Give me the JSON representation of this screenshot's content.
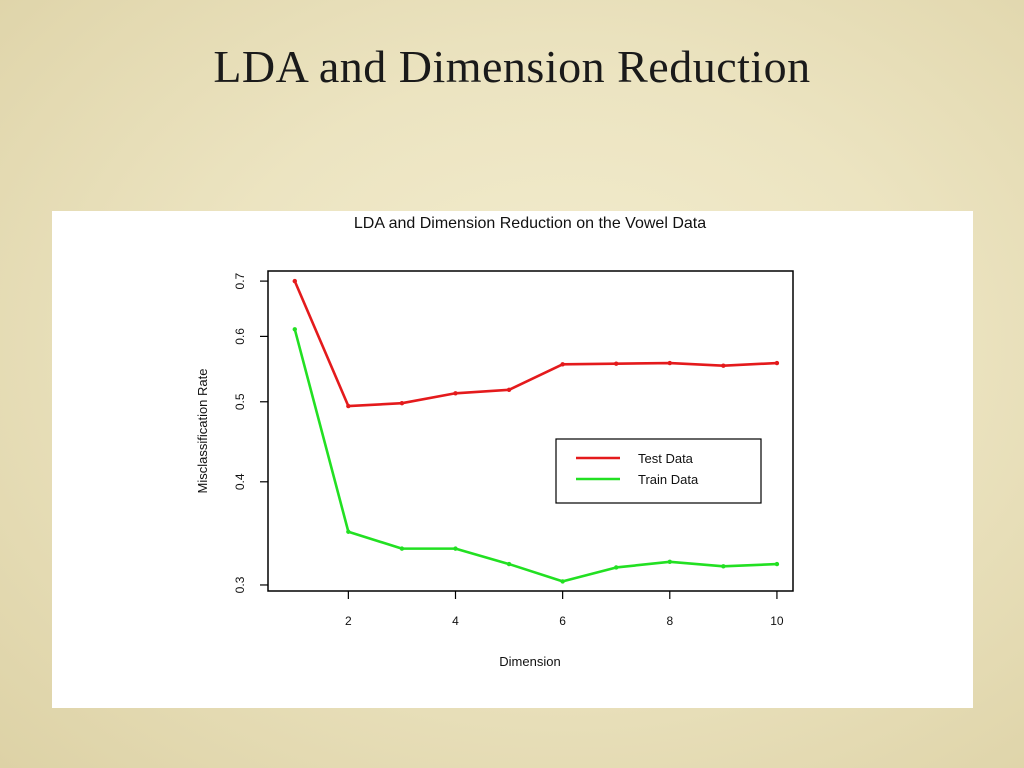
{
  "slide": {
    "title": "LDA and Dimension Reduction"
  },
  "chart_data": {
    "type": "line",
    "title": "LDA and Dimension Reduction on the Vowel Data",
    "xlabel": "Dimension",
    "ylabel": "Misclassification Rate",
    "x": [
      1,
      2,
      3,
      4,
      5,
      6,
      7,
      8,
      9,
      10
    ],
    "xlim": [
      0.5,
      10.3
    ],
    "ylim": [
      0.295,
      0.72
    ],
    "y_scale": "log",
    "xticks": [
      2,
      4,
      6,
      8,
      10
    ],
    "yticks": [
      0.3,
      0.4,
      0.5,
      0.6,
      0.7
    ],
    "grid": false,
    "legend_position": "center-right",
    "series": [
      {
        "name": "Test Data",
        "color": "#e41a1c",
        "values": [
          0.7,
          0.494,
          0.498,
          0.512,
          0.517,
          0.555,
          0.556,
          0.557,
          0.553,
          0.557
        ]
      },
      {
        "name": "Train Data",
        "color": "#22e022",
        "values": [
          0.612,
          0.348,
          0.332,
          0.332,
          0.318,
          0.303,
          0.315,
          0.32,
          0.316,
          0.318
        ]
      }
    ]
  }
}
